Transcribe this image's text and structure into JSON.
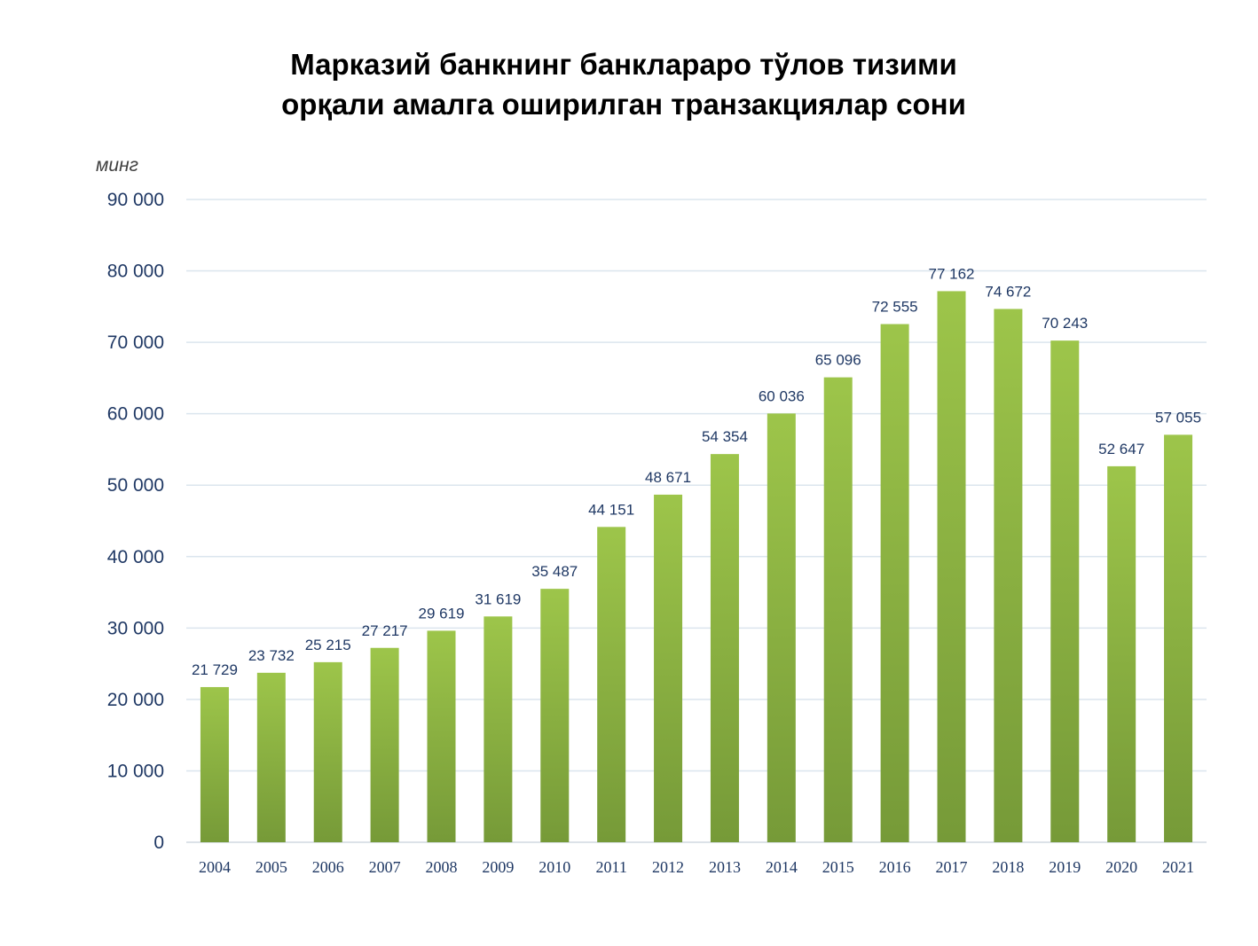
{
  "chart_data": {
    "type": "bar",
    "title": [
      "Марказий банкнинг банклараро тўлов тизими",
      "орқали амалга оширилган транзакциялар сони"
    ],
    "unit_label": "минг",
    "xlabel": "",
    "ylabel": "",
    "ylim": [
      0,
      90000
    ],
    "yticks": [
      0,
      10000,
      20000,
      30000,
      40000,
      50000,
      60000,
      70000,
      80000,
      90000
    ],
    "ytick_labels": [
      "0",
      "10 000",
      "20 000",
      "30 000",
      "40 000",
      "50 000",
      "60 000",
      "70 000",
      "80 000",
      "90 000"
    ],
    "grid": true,
    "categories": [
      "2004",
      "2005",
      "2006",
      "2007",
      "2008",
      "2009",
      "2010",
      "2011",
      "2012",
      "2013",
      "2014",
      "2015",
      "2016",
      "2017",
      "2018",
      "2019",
      "2020",
      "2021"
    ],
    "values": [
      21729,
      23732,
      25215,
      27217,
      29619,
      31619,
      35487,
      44151,
      48671,
      54354,
      60036,
      65096,
      72555,
      77162,
      74672,
      70243,
      52647,
      57055
    ],
    "data_labels": [
      "21 729",
      "23 732",
      "25 215",
      "27 217",
      "29 619",
      "31 619",
      "35 487",
      "44 151",
      "48 671",
      "54 354",
      "60 036",
      "65 096",
      "72 555",
      "77 162",
      "74 672",
      "70 243",
      "52 647",
      "57 055"
    ],
    "bar_color_top": "#9dc54a",
    "bar_color_bottom": "#769a38"
  }
}
